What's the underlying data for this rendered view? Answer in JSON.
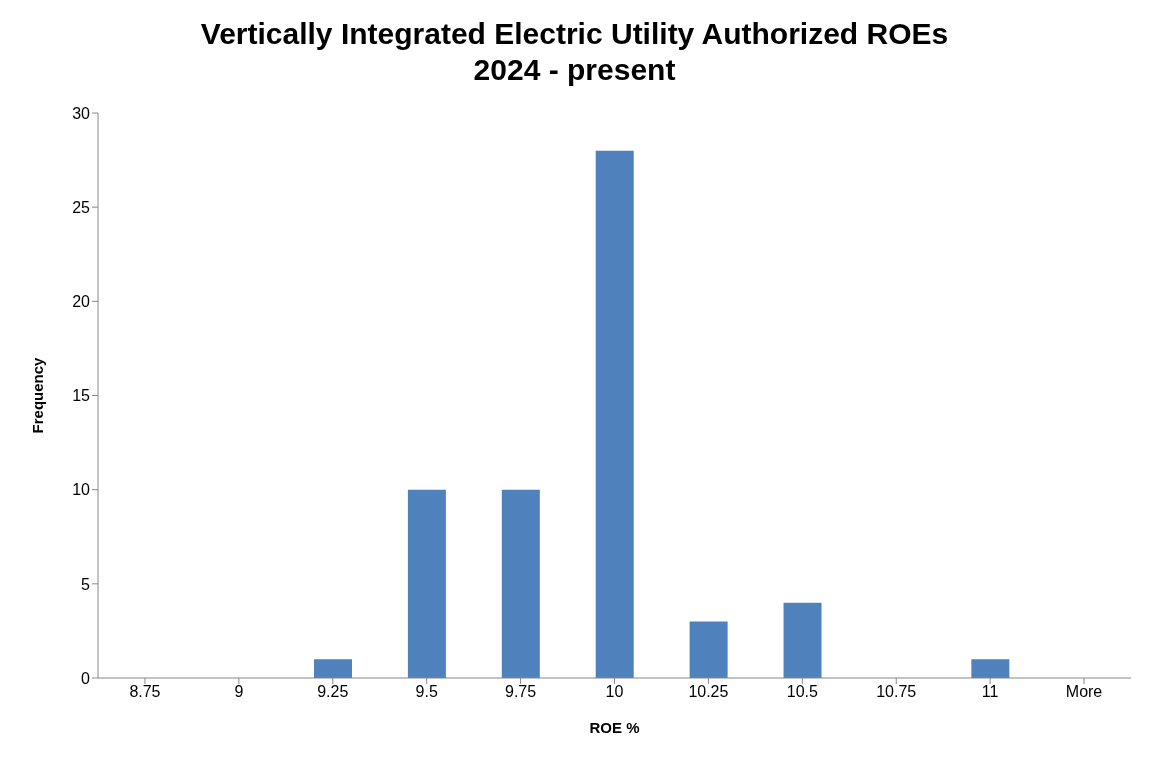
{
  "chart_data": {
    "type": "bar",
    "title": "Vertically Integrated Electric Utility Authorized ROEs\n2024 - present",
    "xlabel": "ROE %",
    "ylabel": "Frequency",
    "categories": [
      "8.75",
      "9",
      "9.25",
      "9.5",
      "9.75",
      "10",
      "10.25",
      "10.5",
      "10.75",
      "11",
      "More"
    ],
    "values": [
      0,
      0,
      1,
      10,
      10,
      28,
      3,
      4,
      0,
      1,
      0
    ],
    "color": "#4f81bd",
    "ylim": [
      0,
      30
    ],
    "yticks": [
      0,
      5,
      10,
      15,
      20,
      25,
      30
    ],
    "grid": false,
    "legend": false
  }
}
